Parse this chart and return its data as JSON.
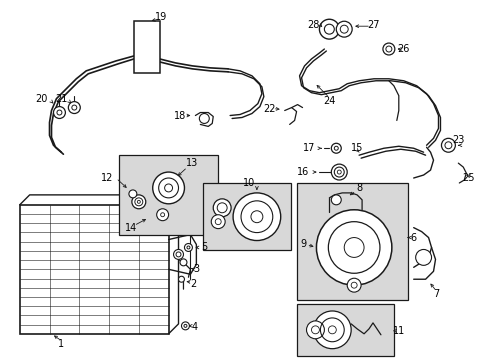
{
  "bg_color": "#ffffff",
  "line_color": "#1a1a1a",
  "box_fill": "#d8d8d8",
  "figsize": [
    4.89,
    3.6
  ],
  "dpi": 100
}
